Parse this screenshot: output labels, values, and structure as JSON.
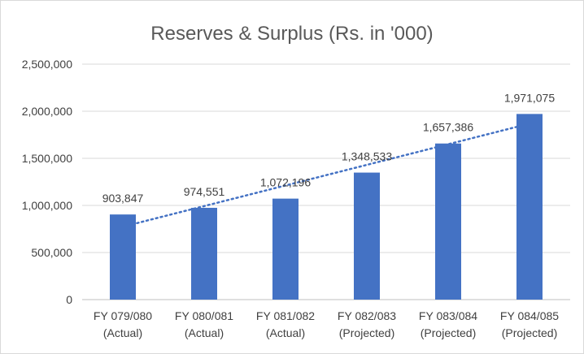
{
  "chart_data": {
    "type": "bar",
    "title": "Reserves & Surplus (Rs. in '000)",
    "xlabel": "",
    "ylabel": "",
    "categories": [
      [
        "FY 079/080",
        "(Actual)"
      ],
      [
        "FY 080/081",
        "(Actual)"
      ],
      [
        "FY 081/082",
        "(Actual)"
      ],
      [
        "FY 082/083",
        "(Projected)"
      ],
      [
        "FY 083/084",
        "(Projected)"
      ],
      [
        "FY 084/085",
        "(Projected)"
      ]
    ],
    "values": [
      903847,
      974551,
      1072196,
      1348533,
      1657386,
      1971075
    ],
    "data_labels": [
      "903,847",
      "974,551",
      "1,072,196",
      "1,348,533",
      "1,657,386",
      "1,971,075"
    ],
    "ylim": [
      0,
      2500000
    ],
    "yticks": [
      0,
      500000,
      1000000,
      1500000,
      2000000,
      2500000
    ],
    "ytick_labels": [
      "0",
      "500,000",
      "1,000,000",
      "1,500,000",
      "2,000,000",
      "2,500,000"
    ],
    "grid": true,
    "trendline": "linear",
    "bar_color": "#4472c4"
  }
}
